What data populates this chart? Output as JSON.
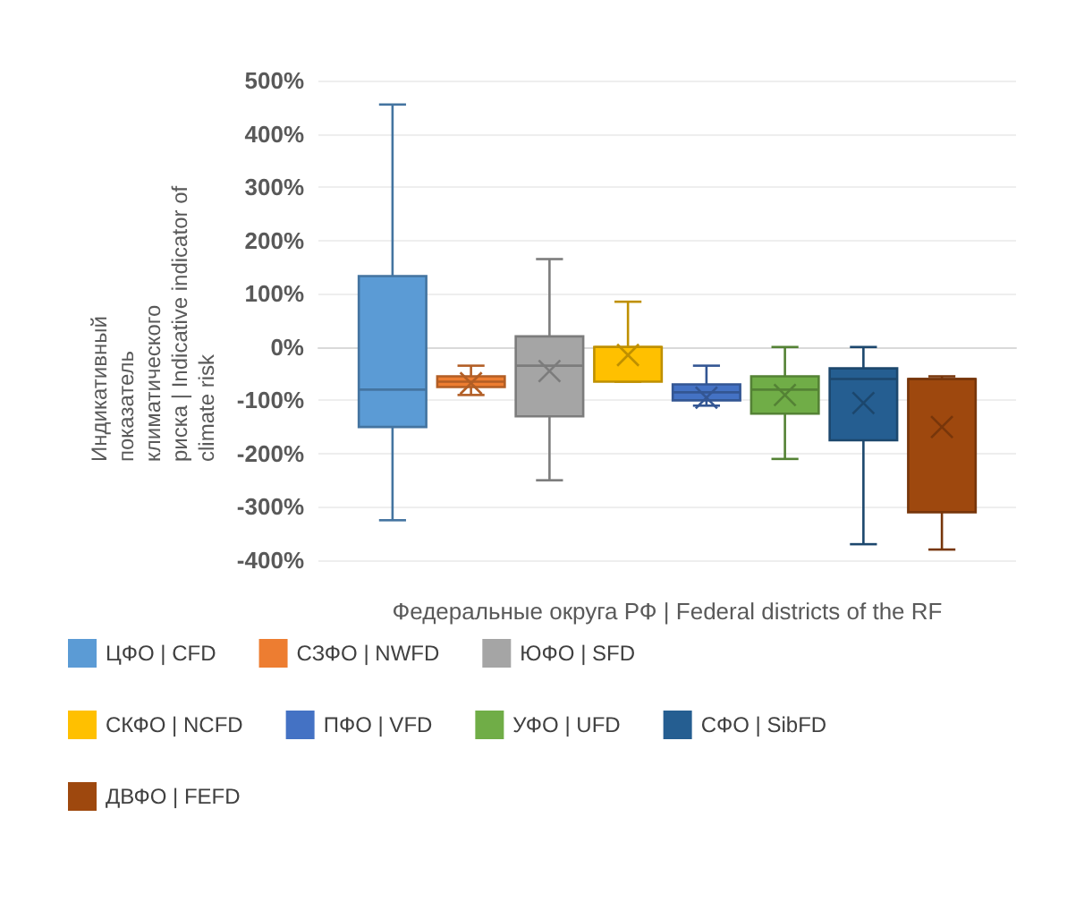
{
  "chart_data": {
    "type": "box",
    "xlabel": "Федеральные округа РФ | Federal districts of the RF",
    "ylabel": "Индикативный показатель климатического риска | Indicative indicator of climate risk",
    "categories": [
      null
    ],
    "ylim": [
      -400,
      500
    ],
    "yticks": [
      {
        "value": -400,
        "label": "-400%"
      },
      {
        "value": -300,
        "label": "-300%"
      },
      {
        "value": -200,
        "label": "-200%"
      },
      {
        "value": -100,
        "label": "-100%"
      },
      {
        "value": 0,
        "label": "0%"
      },
      {
        "value": 100,
        "label": "100%"
      },
      {
        "value": 200,
        "label": "200%"
      },
      {
        "value": 300,
        "label": "300%"
      },
      {
        "value": 400,
        "label": "400%"
      },
      {
        "value": 500,
        "label": "500%"
      }
    ],
    "grid": "y",
    "legend": "bottom",
    "marker": "cross",
    "series": [
      {
        "name": "ЦФО | CFD",
        "color": "#5b9bd5",
        "boxes": [
          {
            "low": -325,
            "q1": -150,
            "median": -80,
            "q3": 133,
            "high": 455
          }
        ]
      },
      {
        "name": "СЗФО | NWFD",
        "color": "#ed7d31",
        "boxes": [
          {
            "low": -90,
            "q1": -75,
            "median": -65,
            "q3": -55,
            "high": -35,
            "mean": -68
          }
        ]
      },
      {
        "name": "ЮФО | SFD",
        "color": "#a5a5a5",
        "boxes": [
          {
            "low": -250,
            "q1": -130,
            "median": -35,
            "q3": 20,
            "high": 165,
            "mean": -45
          }
        ]
      },
      {
        "name": "СКФО | NCFD",
        "color": "#ffc000",
        "boxes": [
          {
            "low": -65,
            "q1": -65,
            "median": 0,
            "q3": 0,
            "high": 85,
            "mean": -15
          }
        ]
      },
      {
        "name": "ПФО | VFD",
        "color": "#4472c4",
        "boxes": [
          {
            "low": -110,
            "q1": -100,
            "median": -85,
            "q3": -70,
            "high": -35,
            "mean": -95
          }
        ]
      },
      {
        "name": "УФО | UFD",
        "color": "#70ad47",
        "boxes": [
          {
            "low": -210,
            "q1": -125,
            "median": -80,
            "q3": -55,
            "high": 0,
            "mean": -90
          }
        ]
      },
      {
        "name": "СФО | SibFD",
        "color": "#255e91",
        "boxes": [
          {
            "low": -370,
            "q1": -175,
            "median": -60,
            "q3": -40,
            "high": 0,
            "mean": -105
          }
        ]
      },
      {
        "name": "ДВФО | FEFD",
        "color": "#9e480e",
        "boxes": [
          {
            "low": -380,
            "q1": -310,
            "median": -60,
            "q3": -60,
            "high": -55,
            "mean": -150
          }
        ]
      }
    ]
  }
}
